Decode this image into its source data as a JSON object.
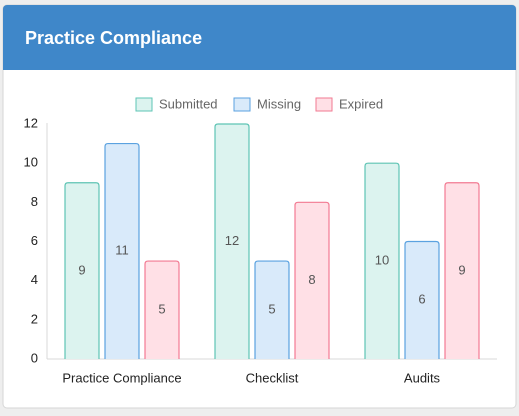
{
  "chart_data": {
    "type": "bar",
    "title": "Practice Compliance",
    "categories": [
      "Practice Compliance",
      "Checklist",
      "Audits"
    ],
    "series": [
      {
        "name": "Submitted",
        "color": "#5ec4b4",
        "fill": "#dcf3ef",
        "values": [
          9,
          12,
          10
        ]
      },
      {
        "name": "Missing",
        "color": "#5ba2e0",
        "fill": "#d9eafa",
        "values": [
          11,
          5,
          6
        ]
      },
      {
        "name": "Expired",
        "color": "#f27a92",
        "fill": "#ffe0e6",
        "values": [
          5,
          8,
          9
        ]
      }
    ],
    "ylim": [
      0,
      12
    ],
    "yticks": [
      0,
      2,
      4,
      6,
      8,
      10,
      12
    ],
    "grid": false,
    "legend": "top"
  }
}
